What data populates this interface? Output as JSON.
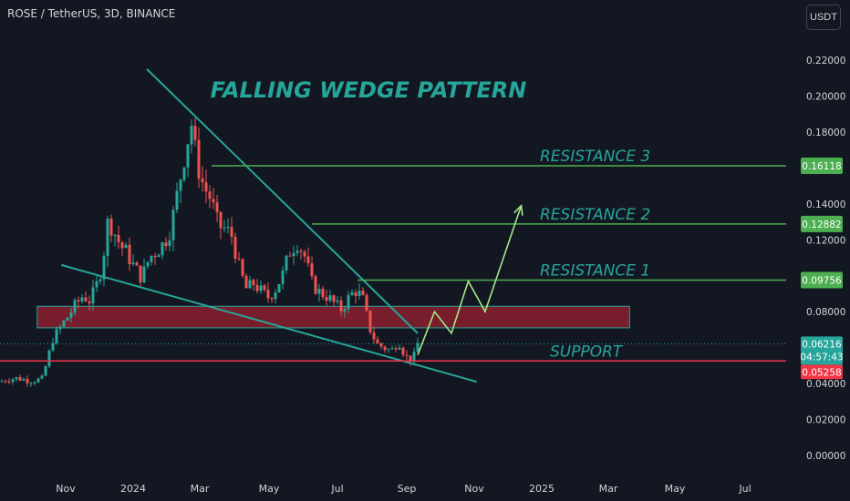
{
  "header": {
    "symbol_line": "ROSE / TetherUS, 3D, BINANCE",
    "currency_button": "USDT"
  },
  "colors": {
    "background": "#131722",
    "axis_text": "#d1d4dc",
    "candle_up": "#26a69a",
    "candle_down": "#ef5350",
    "wedge": "#26a69a",
    "resistance": "#4caf50",
    "support_line": "#f23645",
    "zone_fill": "#8b1e2e",
    "zone_border": "#26a69a",
    "projection": "#a5e887",
    "annotation": "#26a69a"
  },
  "chart_data": {
    "type": "candlestick",
    "xlabel": "",
    "ylabel": "",
    "x_tick_labels": [
      "Nov",
      "2024",
      "Mar",
      "May",
      "Jul",
      "Sep",
      "Nov",
      "2025",
      "Mar",
      "May",
      "Jul"
    ],
    "y_tick_labels": [
      "0.22000",
      "0.20000",
      "0.18000",
      "0.14000",
      "0.12000",
      "0.08000",
      "0.04000",
      "0.02000",
      "0.00000"
    ],
    "y_ticks": [
      0.22,
      0.2,
      0.18,
      0.14,
      0.12,
      0.08,
      0.04,
      0.02,
      0.0
    ],
    "ylim": [
      -0.005,
      0.23
    ],
    "price_series": [
      [
        "2023-09-25",
        0.041
      ],
      [
        "2023-10-01",
        0.0425
      ],
      [
        "2023-10-10",
        0.043
      ],
      [
        "2023-10-20",
        0.0415
      ],
      [
        "2023-10-30",
        0.0425
      ],
      [
        "2023-11-03",
        0.052
      ],
      [
        "2023-11-08",
        0.065
      ],
      [
        "2023-11-14",
        0.071
      ],
      [
        "2023-11-20",
        0.077
      ],
      [
        "2023-11-26",
        0.083
      ],
      [
        "2023-12-03",
        0.089
      ],
      [
        "2023-12-09",
        0.086
      ],
      [
        "2023-12-15",
        0.096
      ],
      [
        "2023-12-19",
        0.107
      ],
      [
        "2023-12-24",
        0.132
      ],
      [
        "2023-12-29",
        0.124
      ],
      [
        "2024-01-03",
        0.117
      ],
      [
        "2024-01-09",
        0.112
      ],
      [
        "2024-01-15",
        0.104
      ],
      [
        "2024-01-21",
        0.099
      ],
      [
        "2024-01-27",
        0.11
      ],
      [
        "2024-02-02",
        0.114
      ],
      [
        "2024-02-08",
        0.118
      ],
      [
        "2024-02-14",
        0.127
      ],
      [
        "2024-02-20",
        0.148
      ],
      [
        "2024-02-26",
        0.17
      ],
      [
        "2024-03-02",
        0.185
      ],
      [
        "2024-03-06",
        0.165
      ],
      [
        "2024-03-12",
        0.15
      ],
      [
        "2024-03-18",
        0.143
      ],
      [
        "2024-03-24",
        0.128
      ],
      [
        "2024-03-30",
        0.126
      ],
      [
        "2024-04-05",
        0.122
      ],
      [
        "2024-04-11",
        0.103
      ],
      [
        "2024-04-17",
        0.092
      ],
      [
        "2024-04-23",
        0.096
      ],
      [
        "2024-04-29",
        0.091
      ],
      [
        "2024-05-05",
        0.088
      ],
      [
        "2024-05-11",
        0.093
      ],
      [
        "2024-05-17",
        0.101
      ],
      [
        "2024-05-23",
        0.114
      ],
      [
        "2024-05-29",
        0.119
      ],
      [
        "2024-06-04",
        0.111
      ],
      [
        "2024-06-10",
        0.096
      ],
      [
        "2024-06-16",
        0.091
      ],
      [
        "2024-06-22",
        0.089
      ],
      [
        "2024-06-28",
        0.085
      ],
      [
        "2024-07-04",
        0.081
      ],
      [
        "2024-07-10",
        0.087
      ],
      [
        "2024-07-16",
        0.092
      ],
      [
        "2024-07-22",
        0.088
      ],
      [
        "2024-07-28",
        0.071
      ],
      [
        "2024-08-03",
        0.062
      ],
      [
        "2024-08-09",
        0.06
      ],
      [
        "2024-08-15",
        0.058
      ],
      [
        "2024-08-21",
        0.064
      ],
      [
        "2024-08-27",
        0.055
      ],
      [
        "2024-09-02",
        0.053
      ],
      [
        "2024-09-06",
        0.06216
      ]
    ],
    "last_price": 0.06216,
    "countdown": "04:57:43",
    "resistance_levels": [
      {
        "label": "RESISTANCE 3",
        "price": 0.16118,
        "price_label": "0.16118"
      },
      {
        "label": "RESISTANCE 2",
        "price": 0.12882,
        "price_label": "0.12882"
      },
      {
        "label": "RESISTANCE 1",
        "price": 0.09756,
        "price_label": "0.09756"
      }
    ],
    "support": {
      "label": "SUPPORT",
      "price": 0.05258,
      "price_label": "0.05258"
    },
    "zone": {
      "from": "2023-11-01",
      "to": "2025-03-01",
      "low": 0.071,
      "high": 0.083
    },
    "wedge_upper": [
      [
        "2024-01-25",
        0.215
      ],
      [
        "2024-09-06",
        0.068
      ]
    ],
    "wedge_lower": [
      [
        "2023-11-15",
        0.106
      ],
      [
        "2024-10-25",
        0.041
      ]
    ],
    "projection": [
      [
        "2024-09-06",
        0.056
      ],
      [
        "2024-09-20",
        0.08
      ],
      [
        "2024-10-04",
        0.068
      ],
      [
        "2024-10-18",
        0.097
      ],
      [
        "2024-11-01",
        0.08
      ],
      [
        "2024-12-01",
        0.139
      ]
    ],
    "annotation_title": "FALLING WEDGE PATTERN"
  }
}
